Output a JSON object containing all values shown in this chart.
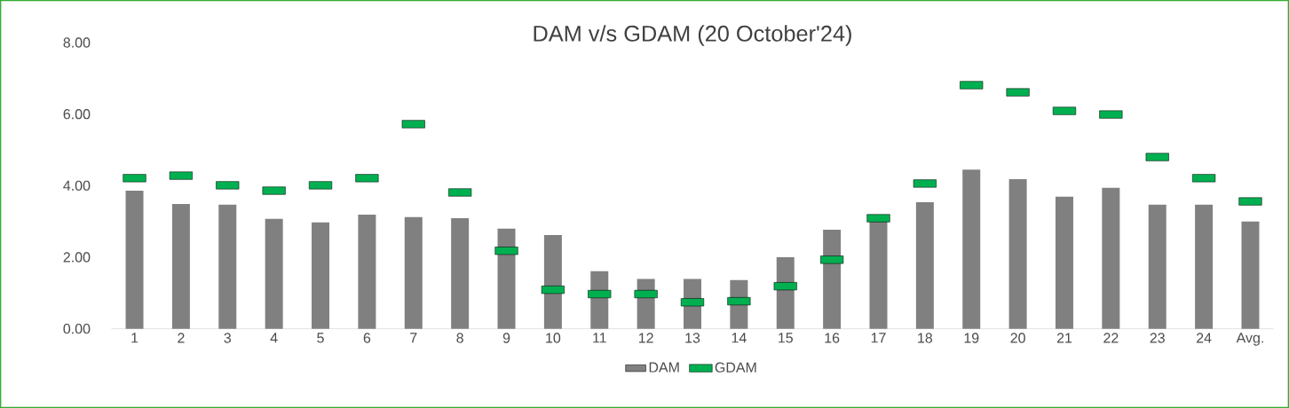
{
  "chart_data": {
    "type": "bar",
    "title": "DAM v/s GDAM (20 October'24)",
    "categories": [
      "1",
      "2",
      "3",
      "4",
      "5",
      "6",
      "7",
      "8",
      "9",
      "10",
      "11",
      "12",
      "13",
      "14",
      "15",
      "16",
      "17",
      "18",
      "19",
      "20",
      "21",
      "22",
      "23",
      "24",
      "Avg."
    ],
    "series": [
      {
        "name": "DAM",
        "color": "#808080",
        "values": [
          3.86,
          3.49,
          3.47,
          3.07,
          2.97,
          3.19,
          3.12,
          3.09,
          2.8,
          2.62,
          1.61,
          1.39,
          1.39,
          1.36,
          2.0,
          2.77,
          3.02,
          3.54,
          4.45,
          4.18,
          3.69,
          3.94,
          3.47,
          3.47,
          3.0
        ]
      },
      {
        "name": "GDAM",
        "type": "scatter",
        "color": "#00b050",
        "values": [
          4.21,
          4.28,
          4.01,
          3.86,
          4.01,
          4.21,
          5.72,
          3.81,
          2.18,
          1.09,
          0.97,
          0.97,
          0.74,
          0.77,
          1.19,
          1.93,
          3.09,
          4.06,
          6.81,
          6.61,
          6.09,
          5.99,
          4.8,
          4.21,
          3.56
        ]
      }
    ],
    "ylim": [
      0,
      8
    ],
    "yticks": [
      {
        "value": 0,
        "label": "0.00"
      },
      {
        "value": 2,
        "label": "2.00"
      },
      {
        "value": 4,
        "label": "4.00"
      },
      {
        "value": 6,
        "label": "6.00"
      },
      {
        "value": 8,
        "label": "8.00"
      }
    ],
    "legend": "bottom",
    "grid": false
  }
}
